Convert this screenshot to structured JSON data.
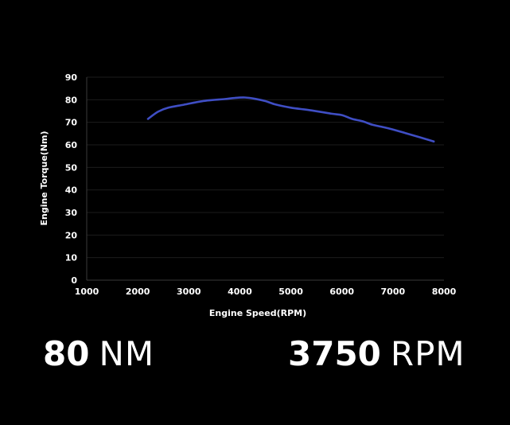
{
  "chart_data": {
    "type": "line",
    "xlabel": "Engine Speed(RPM)",
    "ylabel": "Engine Torque(Nm)",
    "xlim": [
      1000,
      8000
    ],
    "ylim": [
      0,
      90
    ],
    "x_ticks": [
      1000,
      2000,
      3000,
      4000,
      5000,
      6000,
      7000,
      8000
    ],
    "y_ticks": [
      0,
      10,
      20,
      30,
      40,
      50,
      60,
      70,
      80,
      90
    ],
    "grid": "horizontal",
    "line_color": "#3f4ec4",
    "series": [
      {
        "x": [
          2200,
          2400,
          2600,
          2900,
          3300,
          3700,
          3900,
          4100,
          4300,
          4500,
          4700,
          5000,
          5400,
          5800,
          6000,
          6200,
          6400,
          6600,
          6800,
          7000,
          7400,
          7800
        ],
        "y": [
          71.5,
          74.7,
          76.5,
          77.8,
          79.5,
          80.3,
          80.8,
          81.0,
          80.4,
          79.4,
          77.9,
          76.5,
          75.3,
          73.8,
          73.2,
          71.5,
          70.5,
          68.9,
          67.9,
          66.8,
          64.2,
          61.5
        ]
      }
    ]
  },
  "stats": {
    "torque_value": "80",
    "torque_unit": "NM",
    "speed_value": "3750",
    "speed_unit": "RPM"
  }
}
